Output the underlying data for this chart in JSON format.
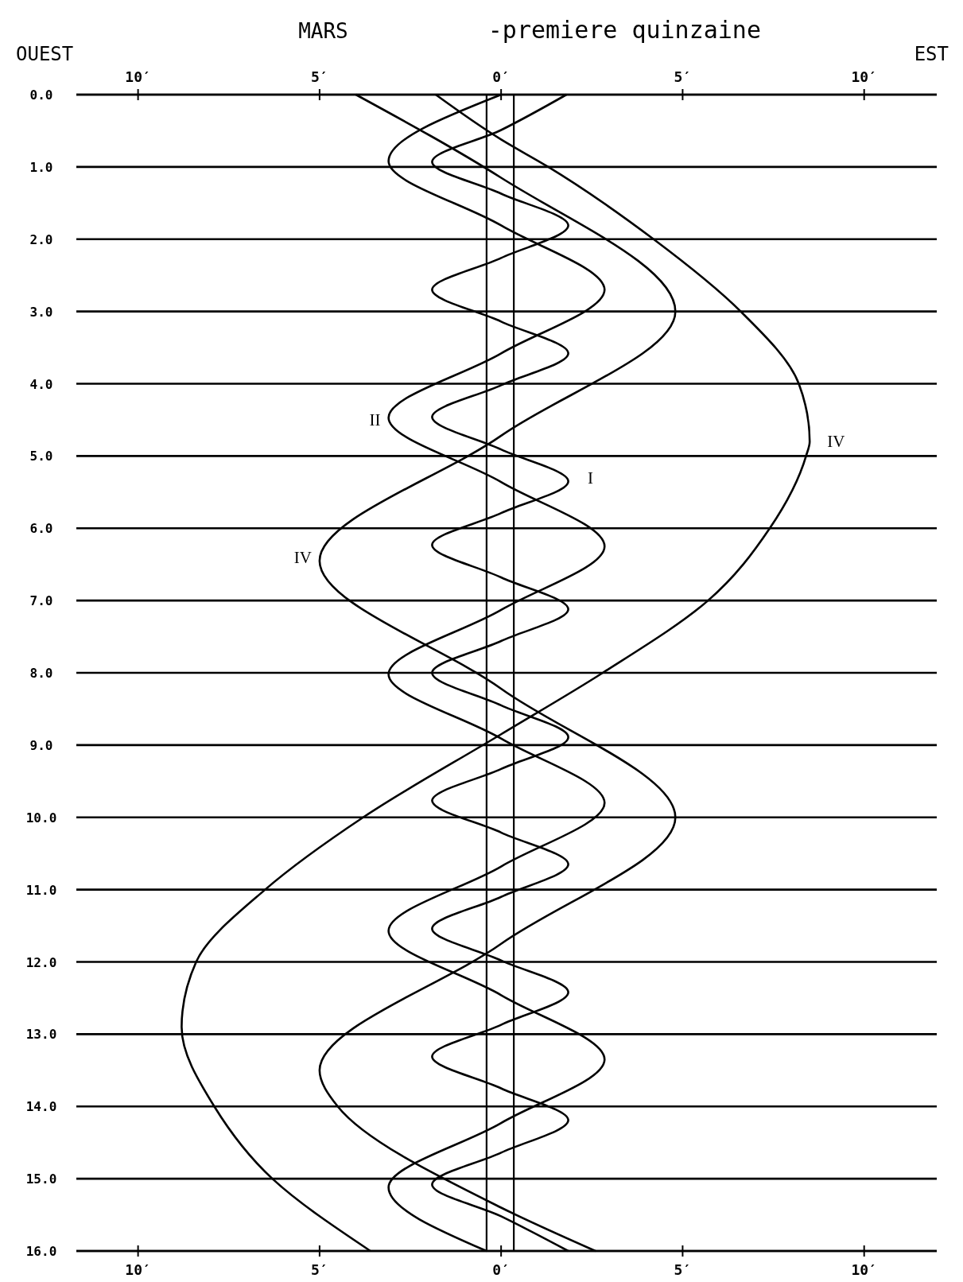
{
  "chart_data": {
    "type": "line",
    "title": "MARS",
    "subtitle": "-premiere quinzaine",
    "annotations": [
      "OUEST",
      "EST",
      {
        "text": "I",
        "x": 1.9,
        "y": 5.3
      },
      {
        "text": "II",
        "x": -3.1,
        "y": 4.5
      },
      {
        "text": "IV",
        "x": -5.0,
        "y": 6.4
      },
      {
        "text": "IV",
        "x": 8.5,
        "y": 4.8
      }
    ],
    "series": [
      {
        "color": "#000000",
        "x": [
          1.8,
          0,
          -1.9,
          0,
          1.85,
          0,
          -1.9,
          0,
          1.85,
          0,
          -1.9,
          0,
          1.85,
          0,
          -1.9,
          0,
          1.85,
          0,
          -1.9,
          0,
          1.85,
          0,
          -1.9,
          0,
          1.85,
          0,
          -1.9,
          0,
          1.85,
          0,
          -1.9,
          0,
          1.85,
          0,
          -1.9,
          0,
          1.85
        ],
        "values": [
          0,
          0.49,
          0.93,
          1.37,
          1.81,
          2.26,
          2.7,
          3.14,
          3.58,
          4.02,
          4.46,
          4.91,
          5.35,
          5.79,
          6.23,
          6.68,
          7.12,
          7.56,
          8,
          8.45,
          8.89,
          9.33,
          9.77,
          10.21,
          10.65,
          11.1,
          11.54,
          11.98,
          12.42,
          12.87,
          13.31,
          13.75,
          14.19,
          14.64,
          15.08,
          15.52,
          16
        ]
      },
      {
        "color": "#000000",
        "x": [
          0,
          -3.1,
          0,
          2.85,
          0,
          -3.1,
          0,
          2.85,
          0,
          -3.1,
          0,
          2.85,
          0,
          -3.1,
          0,
          2.85,
          0,
          -3.1,
          -0.4
        ],
        "values": [
          0,
          0.92,
          1.81,
          2.7,
          3.58,
          4.47,
          5.36,
          6.25,
          7.13,
          8.02,
          8.91,
          9.8,
          10.68,
          11.57,
          12.46,
          13.35,
          14.23,
          15.12,
          16
        ]
      },
      {
        "color": "#000000",
        "x": [
          -4.0,
          0,
          4.8,
          0,
          -5.0,
          0,
          4.8,
          0,
          -5.0,
          -4.5,
          0,
          2.6
        ],
        "values": [
          0,
          1.15,
          3.0,
          4.72,
          6.45,
          8.22,
          10.0,
          11.75,
          13.5,
          14.0,
          15.4,
          16
        ]
      },
      {
        "color": "#000000",
        "x": [
          -1.8,
          0,
          1.3,
          4.2,
          6.6,
          8.2,
          8.5,
          8.4,
          7.4,
          5.7,
          2.8,
          0,
          -3.8,
          -6.5,
          -8.4,
          -8.8,
          -7.9,
          -6.3,
          -3.6
        ],
        "values": [
          0,
          0.62,
          1,
          2,
          3,
          4,
          4.8,
          5,
          6,
          7,
          8,
          8.85,
          10,
          11,
          12,
          12.9,
          14,
          15,
          16
        ]
      }
    ],
    "xlim": [
      -11.7,
      12
    ],
    "xticks": [
      {
        "value": -10,
        "label": "10′"
      },
      {
        "value": -5,
        "label": "5′"
      },
      {
        "value": 0,
        "label": "0′"
      },
      {
        "value": 5,
        "label": "5′"
      },
      {
        "value": 10,
        "label": "10′"
      }
    ],
    "x2lim": [
      -11.7,
      12
    ],
    "x2ticks": [
      {
        "value": -10,
        "label": "10′"
      },
      {
        "value": -5,
        "label": "5′"
      },
      {
        "value": 0,
        "label": "0′"
      },
      {
        "value": 5,
        "label": "5′"
      },
      {
        "value": 10,
        "label": "10′"
      }
    ],
    "ylim": [
      16,
      0
    ],
    "yticks": [
      {
        "value": 0,
        "label": "0.0"
      },
      {
        "value": 1,
        "label": "1.0"
      },
      {
        "value": 2,
        "label": "2.0"
      },
      {
        "value": 3,
        "label": "3.0"
      },
      {
        "value": 4,
        "label": "4.0"
      },
      {
        "value": 5,
        "label": "5.0"
      },
      {
        "value": 6,
        "label": "6.0"
      },
      {
        "value": 7,
        "label": "7.0"
      },
      {
        "value": 8,
        "label": "8.0"
      },
      {
        "value": 9,
        "label": "9.0"
      },
      {
        "value": 10,
        "label": "10.0"
      },
      {
        "value": 11,
        "label": "11.0"
      },
      {
        "value": 12,
        "label": "12.0"
      },
      {
        "value": 13,
        "label": "13.0"
      },
      {
        "value": 14,
        "label": "14.0"
      },
      {
        "value": 15,
        "label": "15.0"
      },
      {
        "value": 16,
        "label": "16.0"
      }
    ],
    "grid": "y",
    "ref_lines": [
      {
        "axis": "x",
        "value": -0.4
      },
      {
        "axis": "x",
        "value": 0.35
      }
    ],
    "line_style": "solid",
    "marker": "none"
  }
}
